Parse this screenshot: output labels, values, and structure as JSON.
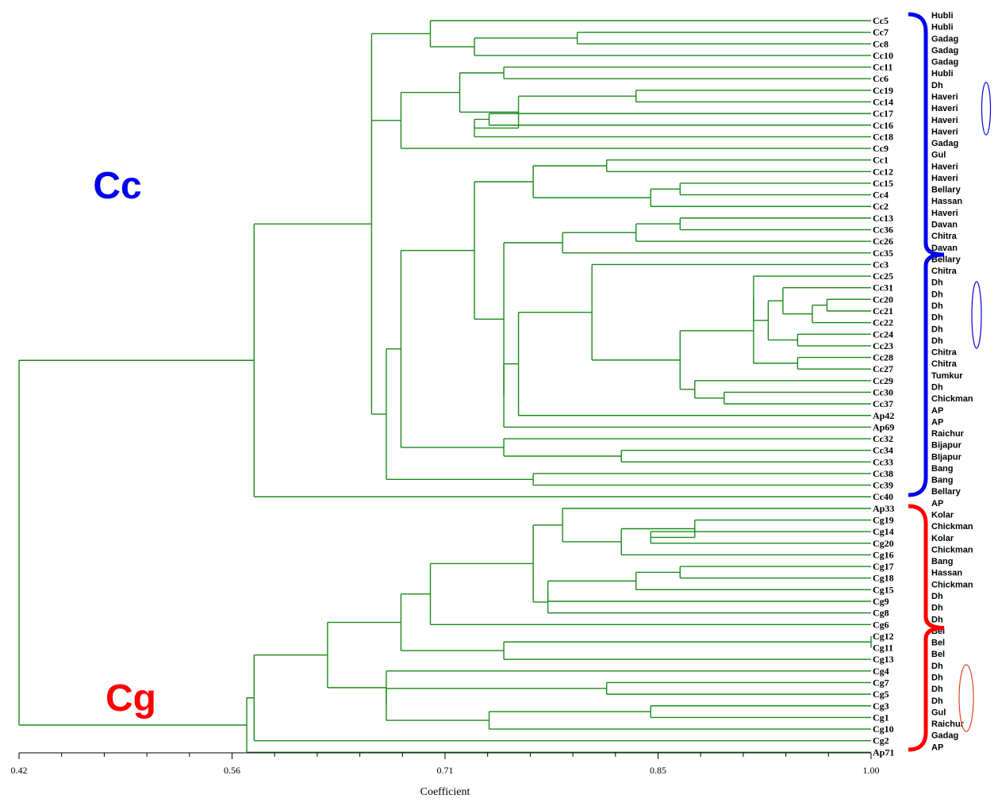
{
  "axis": {
    "title": "Coefficient",
    "min": 0.42,
    "max": 1.0,
    "tick_labels": [
      "0.42",
      "0.56",
      "0.71",
      "0.85",
      "1.00"
    ]
  },
  "groups": [
    {
      "label": "Cc",
      "color": "#0000ee"
    },
    {
      "label": "Cg",
      "color": "#ff0000"
    }
  ],
  "colors": {
    "tree": "#1a8a1a",
    "axis": "#000000"
  },
  "leaves": [
    {
      "id": "Cc5",
      "location": "Hubli"
    },
    {
      "id": "Cc7",
      "location": "Hubli"
    },
    {
      "id": "Cc8",
      "location": "Gadag"
    },
    {
      "id": "Cc10",
      "location": "Gadag"
    },
    {
      "id": "Cc11",
      "location": "Gadag"
    },
    {
      "id": "Cc6",
      "location": "Hubli"
    },
    {
      "id": "Cc19",
      "location": "Dh"
    },
    {
      "id": "Cc14",
      "location": "Haveri"
    },
    {
      "id": "Cc17",
      "location": "Haveri"
    },
    {
      "id": "Cc16",
      "location": "Haveri"
    },
    {
      "id": "Cc18",
      "location": "Haveri"
    },
    {
      "id": "Cc9",
      "location": "Gadag"
    },
    {
      "id": "Cc1",
      "location": "Gul"
    },
    {
      "id": "Cc12",
      "location": "Haveri"
    },
    {
      "id": "Cc15",
      "location": "Haveri"
    },
    {
      "id": "Cc4",
      "location": "Bellary"
    },
    {
      "id": "Cc2",
      "location": "Hassan"
    },
    {
      "id": "Cc13",
      "location": "Haveri"
    },
    {
      "id": "Cc36",
      "location": "Davan"
    },
    {
      "id": "Cc26",
      "location": "Chitra"
    },
    {
      "id": "Cc35",
      "location": "Davan"
    },
    {
      "id": "Cc3",
      "location": "Bellary"
    },
    {
      "id": "Cc25",
      "location": "Chitra"
    },
    {
      "id": "Cc31",
      "location": "Dh"
    },
    {
      "id": "Cc20",
      "location": "Dh"
    },
    {
      "id": "Cc21",
      "location": "Dh"
    },
    {
      "id": "Cc22",
      "location": "Dh"
    },
    {
      "id": "Cc24",
      "location": "Dh"
    },
    {
      "id": "Cc23",
      "location": "Dh"
    },
    {
      "id": "Cc28",
      "location": "Chitra"
    },
    {
      "id": "Cc27",
      "location": "Chitra"
    },
    {
      "id": "Cc29",
      "location": "Tumkur"
    },
    {
      "id": "Cc30",
      "location": "Dh"
    },
    {
      "id": "Cc37",
      "location": "Chickman"
    },
    {
      "id": "Ap42",
      "location": "AP"
    },
    {
      "id": "Ap69",
      "location": "AP"
    },
    {
      "id": "Cc32",
      "location": "Raichur"
    },
    {
      "id": "Cc34",
      "location": "Bijapur"
    },
    {
      "id": "Cc33",
      "location": "BIjapur"
    },
    {
      "id": "Cc38",
      "location": "Bang"
    },
    {
      "id": "Cc39",
      "location": "Bang"
    },
    {
      "id": "Cc40",
      "location": "Bellary"
    },
    {
      "id": "Ap33",
      "location": "AP"
    },
    {
      "id": "Cg19",
      "location": "Kolar"
    },
    {
      "id": "Cg14",
      "location": "Chickman"
    },
    {
      "id": "Cg20",
      "location": "Kolar"
    },
    {
      "id": "Cg16",
      "location": "Chickman"
    },
    {
      "id": "Cg17",
      "location": "Bang"
    },
    {
      "id": "Cg18",
      "location": "Hassan"
    },
    {
      "id": "Cg15",
      "location": "Chickman"
    },
    {
      "id": "Cg9",
      "location": "Dh"
    },
    {
      "id": "Cg8",
      "location": "Dh"
    },
    {
      "id": "Cg6",
      "location": "Dh"
    },
    {
      "id": "Cg12",
      "location": "Bel"
    },
    {
      "id": "Cg11",
      "location": "Bel"
    },
    {
      "id": "Cg13",
      "location": "Bel"
    },
    {
      "id": "Cg4",
      "location": "Dh"
    },
    {
      "id": "Cg7",
      "location": "Dh"
    },
    {
      "id": "Cg5",
      "location": "Dh"
    },
    {
      "id": "Cg3",
      "location": "Dh"
    },
    {
      "id": "Cg1",
      "location": "Gul"
    },
    {
      "id": "Cg10",
      "location": "Raichur"
    },
    {
      "id": "Cg2",
      "location": "Gadag"
    },
    {
      "id": "Ap71",
      "location": "AP"
    }
  ],
  "merges": [
    {
      "a": "Cc7",
      "b": "Cc8",
      "coefficient": 0.8
    },
    {
      "a": "Cc7+Cc8",
      "b": "Cc10",
      "coefficient": 0.73
    },
    {
      "a": "Cc5",
      "b": "Cc7+",
      "coefficient": 0.7
    },
    {
      "a": "Cc11",
      "b": "Cc6",
      "coefficient": 0.75
    },
    {
      "a": "Cc19",
      "b": "Cc14",
      "coefficient": 0.84
    },
    {
      "a": "Cc17",
      "b": "Cc16",
      "coefficient": 0.74
    },
    {
      "a": "Cc17+Cc16",
      "b": "Cc18",
      "coefficient": 0.73
    },
    {
      "a": "Cc19+Cc14",
      "b": "Cc17+",
      "coefficient": 0.76
    },
    {
      "a": "Cc11+Cc6",
      "b": "Cc19+",
      "coefficient": 0.72
    },
    {
      "a": "group",
      "b": "Cc9",
      "coefficient": 0.68
    },
    {
      "a": "Cc15",
      "b": "Cc4",
      "coefficient": 0.87
    },
    {
      "a": "Cc15+Cc4",
      "b": "Cc2",
      "coefficient": 0.85
    },
    {
      "a": "Cc1",
      "b": "Cc12",
      "coefficient": 0.82
    },
    {
      "a": "Cc1+Cc12",
      "b": "Cc15+",
      "coefficient": 0.77
    },
    {
      "a": "Cc13",
      "b": "Cc36",
      "coefficient": 0.87
    },
    {
      "a": "Cc13+Cc36",
      "b": "Cc26",
      "coefficient": 0.84
    },
    {
      "a": "Cc13+",
      "b": "Cc35",
      "coefficient": 0.79
    },
    {
      "a": "Cc20",
      "b": "Cc21",
      "coefficient": 0.97
    },
    {
      "a": "Cc20+Cc21",
      "b": "Cc22",
      "coefficient": 0.96
    },
    {
      "a": "Cc31",
      "b": "Cc20+",
      "coefficient": 0.94
    },
    {
      "a": "Cc24",
      "b": "Cc23",
      "coefficient": 0.95
    },
    {
      "a": "Cc31+",
      "b": "Cc24+Cc23",
      "coefficient": 0.93
    },
    {
      "a": "Cc25",
      "b": "Cc31+",
      "coefficient": 0.92
    },
    {
      "a": "Cc28",
      "b": "Cc27",
      "coefficient": 0.95
    },
    {
      "a": "Cc25+",
      "b": "Cc28+Cc27",
      "coefficient": 0.92
    },
    {
      "a": "Cc30",
      "b": "Cc37",
      "coefficient": 0.9
    },
    {
      "a": "Cc29",
      "b": "Cc30+Cc37",
      "coefficient": 0.88
    },
    {
      "a": "Cc25+",
      "b": "Cc29+",
      "coefficient": 0.87
    },
    {
      "a": "Cc3",
      "b": "Cc25+",
      "coefficient": 0.81
    },
    {
      "a": "Cc3+",
      "b": "Ap42",
      "coefficient": 0.76
    },
    {
      "a": "Cc3+",
      "b": "Ap69",
      "coefficient": 0.75
    },
    {
      "a": "Cc13+",
      "b": "Cc3+",
      "coefficient": 0.75
    },
    {
      "a": "Cc1+",
      "b": "Cc13+",
      "coefficient": 0.73
    },
    {
      "a": "Cc34",
      "b": "Cc33",
      "coefficient": 0.83
    },
    {
      "a": "Cc32",
      "b": "Cc34+Cc33",
      "coefficient": 0.75
    },
    {
      "a": "Cc1+",
      "b": "Cc32+",
      "coefficient": 0.68
    },
    {
      "a": "Cc38",
      "b": "Cc39",
      "coefficient": 0.77
    },
    {
      "a": "Cc1+",
      "b": "Cc38+Cc39",
      "coefficient": 0.67
    },
    {
      "a": "Cc5+",
      "b": "Cc1+",
      "coefficient": 0.66
    },
    {
      "a": "Cc5+",
      "b": "Cc40",
      "coefficient": 0.58
    },
    {
      "a": "Cg19",
      "b": "Cg14+Cg20",
      "coefficient": 0.88
    },
    {
      "a": "Cg14",
      "b": "Cg20",
      "coefficient": 0.85
    },
    {
      "a": "Cg19+",
      "b": "Cg16",
      "coefficient": 0.83
    },
    {
      "a": "Ap33",
      "b": "Cg19+",
      "coefficient": 0.79
    },
    {
      "a": "Cg17",
      "b": "Cg18",
      "coefficient": 0.87
    },
    {
      "a": "Cg17+Cg18",
      "b": "Cg15",
      "coefficient": 0.84
    },
    {
      "a": "Cg17+",
      "b": "Cg9",
      "coefficient": 0.78
    },
    {
      "a": "Cg17+",
      "b": "Cg8",
      "coefficient": 0.78
    },
    {
      "a": "Ap33+",
      "b": "Cg17+",
      "coefficient": 0.77
    },
    {
      "a": "Ap33+",
      "b": "Cg6",
      "coefficient": 0.7
    },
    {
      "a": "Cg12",
      "b": "Cg11",
      "coefficient": 1.0
    },
    {
      "a": "Cg12+Cg11",
      "b": "Cg13",
      "coefficient": 0.75
    },
    {
      "a": "Ap33+",
      "b": "Cg12+",
      "coefficient": 0.68
    },
    {
      "a": "Cg7",
      "b": "Cg5",
      "coefficient": 0.82
    },
    {
      "a": "Cg3",
      "b": "Cg1",
      "coefficient": 0.85
    },
    {
      "a": "Cg3+Cg1",
      "b": "Cg10",
      "coefficient": 0.74
    },
    {
      "a": "Cg7+Cg5",
      "b": "Cg3+",
      "coefficient": 0.67
    },
    {
      "a": "Cg4",
      "b": "Cg7+",
      "coefficient": 0.67
    },
    {
      "a": "Ap33+",
      "b": "Cg4+",
      "coefficient": 0.63
    },
    {
      "a": "Ap33+",
      "b": "Cg2",
      "coefficient": 0.58
    },
    {
      "a": "Ap33+",
      "b": "Ap71",
      "coefficient": 0.58
    },
    {
      "a": "Cc",
      "b": "Cg",
      "coefficient": 0.42
    }
  ]
}
